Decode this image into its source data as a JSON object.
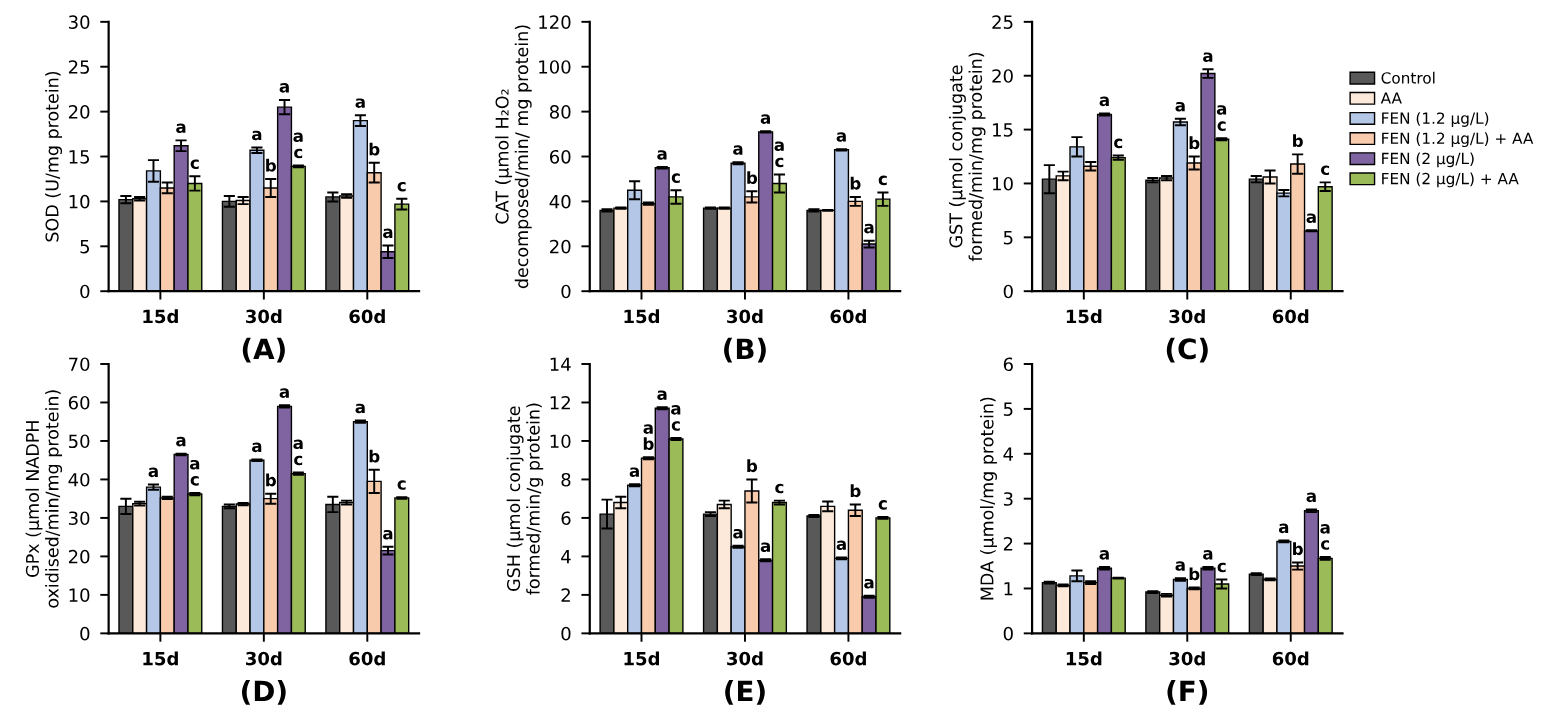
{
  "chart_data": [
    {
      "type": "bar",
      "xlabel": "(A)",
      "ylabel": "SOD (U/mg protein)",
      "categories": [
        "15d",
        "30d",
        "60d"
      ],
      "ylim": [
        0,
        30
      ],
      "yticks": [
        0,
        5,
        10,
        15,
        20,
        25,
        30
      ],
      "grid": false,
      "legend": false,
      "series": [
        {
          "color": "#595959",
          "values": [
            10.2,
            10.0,
            10.5
          ],
          "errors": [
            0.4,
            0.6,
            0.5
          ]
        },
        {
          "color": "#fde9d9",
          "values": [
            10.3,
            10.1,
            10.6
          ],
          "errors": [
            0.2,
            0.4,
            0.2
          ]
        },
        {
          "color": "#b4c7e7",
          "values": [
            13.4,
            15.7,
            19.0
          ],
          "errors": [
            1.2,
            0.3,
            0.6
          ],
          "value_labels": [
            null,
            "a",
            "a"
          ]
        },
        {
          "color": "#f8cbad",
          "values": [
            11.5,
            11.5,
            13.2
          ],
          "errors": [
            0.6,
            1.0,
            1.1
          ],
          "value_labels": [
            null,
            "b",
            "b"
          ]
        },
        {
          "color": "#8064a2",
          "values": [
            16.2,
            20.5,
            4.4
          ],
          "errors": [
            0.6,
            0.8,
            0.7
          ],
          "value_labels": [
            "a",
            "a",
            "a"
          ]
        },
        {
          "color": "#9bbb59",
          "values": [
            12.0,
            13.9,
            9.7
          ],
          "errors": [
            0.8,
            0.1,
            0.6
          ],
          "value_labels": [
            "c",
            "a\nc",
            "c"
          ]
        }
      ]
    },
    {
      "type": "bar",
      "xlabel": "(B)",
      "ylabel": "CAT (µmol H₂O₂\ndecomposed/min/ mg protein)",
      "categories": [
        "15d",
        "30d",
        "60d"
      ],
      "ylim": [
        0,
        120
      ],
      "yticks": [
        0,
        20,
        40,
        60,
        80,
        100,
        120
      ],
      "grid": false,
      "legend": false,
      "series": [
        {
          "color": "#595959",
          "values": [
            36,
            37,
            36
          ],
          "errors": [
            0.5,
            0.3,
            0.5
          ]
        },
        {
          "color": "#fde9d9",
          "values": [
            37,
            37,
            36
          ],
          "errors": [
            0.3,
            0.3,
            0.2
          ]
        },
        {
          "color": "#b4c7e7",
          "values": [
            45,
            57,
            63
          ],
          "errors": [
            4,
            0.5,
            0.3
          ],
          "value_labels": [
            null,
            "a",
            "a"
          ]
        },
        {
          "color": "#f8cbad",
          "values": [
            39,
            42,
            40
          ],
          "errors": [
            0.5,
            2.5,
            2
          ],
          "value_labels": [
            null,
            "b",
            "b"
          ]
        },
        {
          "color": "#8064a2",
          "values": [
            55,
            71,
            21
          ],
          "errors": [
            0.3,
            0.3,
            1.5
          ],
          "value_labels": [
            "a",
            "a",
            "a"
          ]
        },
        {
          "color": "#9bbb59",
          "values": [
            42,
            48,
            41
          ],
          "errors": [
            3,
            4,
            3
          ],
          "value_labels": [
            "c",
            "a\nc",
            "c"
          ]
        }
      ]
    },
    {
      "type": "bar",
      "xlabel": "(C)",
      "ylabel": "GST (µmol conjugate\nformed/min/mg protein)",
      "categories": [
        "15d",
        "30d",
        "60d"
      ],
      "ylim": [
        0,
        25
      ],
      "yticks": [
        0,
        5,
        10,
        15,
        20,
        25
      ],
      "grid": false,
      "legend": "right",
      "series": [
        {
          "name": "Control",
          "color": "#595959",
          "values": [
            10.4,
            10.3,
            10.4
          ],
          "errors": [
            1.3,
            0.2,
            0.3
          ]
        },
        {
          "name": "AA",
          "color": "#fde9d9",
          "values": [
            10.7,
            10.5,
            10.6
          ],
          "errors": [
            0.4,
            0.2,
            0.6
          ]
        },
        {
          "name": "FEN (1.2 µg/L)",
          "color": "#b4c7e7",
          "values": [
            13.4,
            15.7,
            9.1
          ],
          "errors": [
            0.9,
            0.3,
            0.3
          ],
          "value_labels": [
            null,
            "a",
            null
          ]
        },
        {
          "name": "FEN (1.2 µg/L) + AA",
          "color": "#f8cbad",
          "values": [
            11.6,
            11.9,
            11.8
          ],
          "errors": [
            0.4,
            0.6,
            0.9
          ],
          "value_labels": [
            null,
            "b",
            "b"
          ]
        },
        {
          "name": "FEN (2 µg/L)",
          "color": "#8064a2",
          "values": [
            16.4,
            20.2,
            5.6
          ],
          "errors": [
            0.1,
            0.4,
            0.05
          ],
          "value_labels": [
            "a",
            "a",
            "a"
          ]
        },
        {
          "name": "FEN (2 µg/L) + AA",
          "color": "#9bbb59",
          "values": [
            12.4,
            14.1,
            9.7
          ],
          "errors": [
            0.2,
            0.1,
            0.4
          ],
          "value_labels": [
            "c",
            "a\nc",
            "c"
          ]
        }
      ]
    },
    {
      "type": "bar",
      "xlabel": "(D)",
      "ylabel": "GPx (µmol NADPH\noxidised/min/mg protein)",
      "categories": [
        "15d",
        "30d",
        "60d"
      ],
      "ylim": [
        0,
        70
      ],
      "yticks": [
        0,
        10,
        20,
        30,
        40,
        50,
        60,
        70
      ],
      "grid": false,
      "legend": false,
      "series": [
        {
          "color": "#595959",
          "values": [
            33,
            33,
            33.5
          ],
          "errors": [
            2,
            0.5,
            2
          ]
        },
        {
          "color": "#fde9d9",
          "values": [
            33.7,
            33.6,
            34
          ],
          "errors": [
            0.5,
            0.3,
            0.5
          ]
        },
        {
          "color": "#b4c7e7",
          "values": [
            38,
            45,
            55
          ],
          "errors": [
            0.7,
            0.2,
            0.3
          ],
          "value_labels": [
            "a",
            "a",
            "a"
          ]
        },
        {
          "color": "#f8cbad",
          "values": [
            35.2,
            35,
            39.5
          ],
          "errors": [
            0.3,
            1.3,
            3
          ],
          "value_labels": [
            null,
            "b",
            "b"
          ]
        },
        {
          "color": "#8064a2",
          "values": [
            46.5,
            59,
            21.5
          ],
          "errors": [
            0.2,
            0.3,
            1
          ],
          "value_labels": [
            "a",
            "a",
            "a"
          ]
        },
        {
          "color": "#9bbb59",
          "values": [
            36.2,
            41.5,
            35.2
          ],
          "errors": [
            0.3,
            0.3,
            0.2
          ],
          "value_labels": [
            "a\nc",
            "a\nc",
            "c"
          ]
        }
      ]
    },
    {
      "type": "bar",
      "xlabel": "(E)",
      "ylabel": "GSH (µmol conjugate\nformed/min/g protein)",
      "categories": [
        "15d",
        "30d",
        "60d"
      ],
      "ylim": [
        0,
        14
      ],
      "yticks": [
        0,
        2,
        4,
        6,
        8,
        10,
        12,
        14
      ],
      "grid": false,
      "legend": false,
      "series": [
        {
          "color": "#595959",
          "values": [
            6.2,
            6.2,
            6.1
          ],
          "errors": [
            0.75,
            0.1,
            0.05
          ]
        },
        {
          "color": "#fde9d9",
          "values": [
            6.8,
            6.7,
            6.6
          ],
          "errors": [
            0.3,
            0.2,
            0.25
          ]
        },
        {
          "color": "#b4c7e7",
          "values": [
            7.7,
            4.5,
            3.9
          ],
          "errors": [
            0.05,
            0.05,
            0.05
          ],
          "value_labels": [
            "a",
            "a",
            "a"
          ]
        },
        {
          "color": "#f8cbad",
          "values": [
            9.1,
            7.4,
            6.4
          ],
          "errors": [
            0.05,
            0.6,
            0.3
          ],
          "value_labels": [
            "a\nb",
            "b",
            "b"
          ]
        },
        {
          "color": "#8064a2",
          "values": [
            11.7,
            3.8,
            1.9
          ],
          "errors": [
            0.05,
            0.05,
            0.05
          ],
          "value_labels": [
            "a",
            "a",
            "a"
          ]
        },
        {
          "color": "#9bbb59",
          "values": [
            10.1,
            6.8,
            6.0
          ],
          "errors": [
            0.05,
            0.1,
            0.05
          ],
          "value_labels": [
            "a\nc",
            "c",
            "c"
          ]
        }
      ]
    },
    {
      "type": "bar",
      "xlabel": "(F)",
      "ylabel": "MDA (µmol/mg protein)",
      "categories": [
        "15d",
        "30d",
        "60d"
      ],
      "ylim": [
        0,
        6
      ],
      "yticks": [
        0,
        1,
        2,
        3,
        4,
        5,
        6
      ],
      "grid": false,
      "legend": false,
      "series": [
        {
          "color": "#595959",
          "values": [
            1.13,
            0.92,
            1.32
          ],
          "errors": [
            0.02,
            0.02,
            0.02
          ]
        },
        {
          "color": "#fde9d9",
          "values": [
            1.07,
            0.85,
            1.2
          ],
          "errors": [
            0.02,
            0.03,
            0.02
          ]
        },
        {
          "color": "#b4c7e7",
          "values": [
            1.28,
            1.2,
            2.05
          ],
          "errors": [
            0.12,
            0.03,
            0.02
          ],
          "value_labels": [
            null,
            "a",
            "a"
          ]
        },
        {
          "color": "#f8cbad",
          "values": [
            1.13,
            1.0,
            1.5
          ],
          "errors": [
            0.03,
            0.02,
            0.08
          ],
          "value_labels": [
            null,
            "b",
            "b"
          ]
        },
        {
          "color": "#8064a2",
          "values": [
            1.45,
            1.45,
            2.73
          ],
          "errors": [
            0.03,
            0.03,
            0.03
          ],
          "value_labels": [
            "a",
            "a",
            "a"
          ]
        },
        {
          "color": "#9bbb59",
          "values": [
            1.23,
            1.1,
            1.67
          ],
          "errors": [
            0.01,
            0.1,
            0.03
          ],
          "value_labels": [
            null,
            "c",
            "a\nc"
          ]
        }
      ]
    }
  ]
}
